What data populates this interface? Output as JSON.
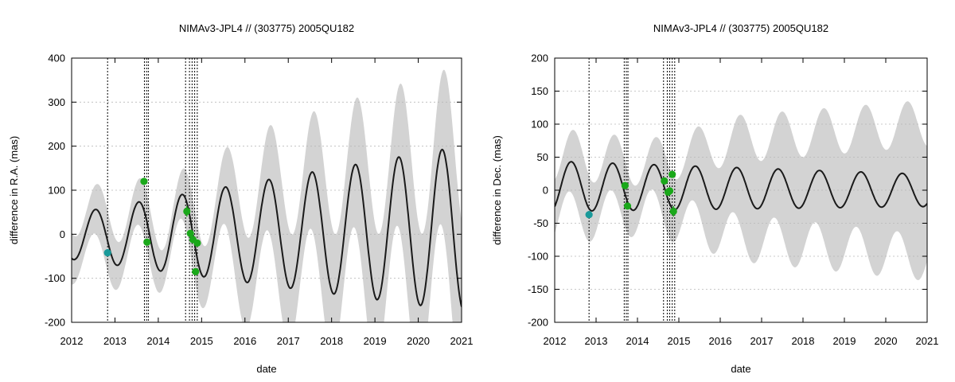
{
  "chart_data": [
    {
      "type": "line",
      "title": "NIMAv3-JPL4 // (303775) 2005QU182",
      "xlabel": "date",
      "ylabel": "difference in R.A. (mas)",
      "xlim": [
        2012,
        2021
      ],
      "ylim": [
        -200,
        400
      ],
      "xticks": [
        2012,
        2013,
        2014,
        2015,
        2016,
        2017,
        2018,
        2019,
        2020,
        2021
      ],
      "yticks": [
        -200,
        -100,
        0,
        100,
        200,
        300,
        400
      ],
      "grid": true,
      "model": {
        "mean_offset": -5,
        "mean_drift_per_year": 2,
        "amplitude_start": 52,
        "amplitude_growth_per_year": 15,
        "peak_phase": 2012.55,
        "period_years": 1.0,
        "band_half_width_start": 55,
        "band_half_width_growth_per_year": 14,
        "band_narrow_at": 2014.2,
        "band_narrow_min": 0.55
      },
      "observation_lines": [
        2012.83,
        2013.68,
        2013.73,
        2013.77,
        2014.63,
        2014.72,
        2014.78,
        2014.84,
        2014.9
      ],
      "series": [
        {
          "color": "#1a9a9a",
          "points": [
            {
              "x": 2012.83,
              "y": -42,
              "err": 8
            }
          ]
        },
        {
          "color": "#1aa81a",
          "points": [
            {
              "x": 2013.67,
              "y": 120,
              "err": 5
            },
            {
              "x": 2013.74,
              "y": -18,
              "err": 4
            },
            {
              "x": 2014.66,
              "y": 52,
              "err": 12
            },
            {
              "x": 2014.74,
              "y": 2,
              "err": 5
            },
            {
              "x": 2014.8,
              "y": -12,
              "err": 4
            },
            {
              "x": 2014.86,
              "y": -85,
              "err": 4
            },
            {
              "x": 2014.9,
              "y": -20,
              "err": 4
            }
          ]
        }
      ]
    },
    {
      "type": "line",
      "title": "NIMAv3-JPL4 // (303775) 2005QU182",
      "xlabel": "date",
      "ylabel": "difference in Dec. (mas)",
      "xlim": [
        2012,
        2021
      ],
      "ylim": [
        -200,
        200
      ],
      "xticks": [
        2012,
        2013,
        2014,
        2015,
        2016,
        2017,
        2018,
        2019,
        2020,
        2021
      ],
      "yticks": [
        -200,
        -150,
        -100,
        -50,
        0,
        50,
        100,
        150,
        200
      ],
      "grid": true,
      "model": {
        "mean_offset": 6,
        "mean_drift_per_year": -0.7,
        "amplitude_start": 38,
        "amplitude_growth_per_year": -1.5,
        "peak_phase": 2012.4,
        "period_years": 1.0,
        "band_half_width_start": 48,
        "band_half_width_growth_per_year": 6,
        "band_narrow_at": 2014.2,
        "band_narrow_min": 0.6
      },
      "observation_lines": [
        2012.83,
        2013.68,
        2013.73,
        2013.77,
        2014.63,
        2014.72,
        2014.78,
        2014.84,
        2014.9
      ],
      "series": [
        {
          "color": "#1a9a9a",
          "points": [
            {
              "x": 2012.83,
              "y": -37,
              "err": 4
            }
          ]
        },
        {
          "color": "#1aa81a",
          "points": [
            {
              "x": 2013.7,
              "y": 7,
              "err": 3
            },
            {
              "x": 2013.76,
              "y": -24,
              "err": 3
            },
            {
              "x": 2014.65,
              "y": 14,
              "err": 4
            },
            {
              "x": 2014.74,
              "y": -3,
              "err": 5
            },
            {
              "x": 2014.78,
              "y": -1,
              "err": 4
            },
            {
              "x": 2014.84,
              "y": 24,
              "err": 3
            },
            {
              "x": 2014.87,
              "y": -32,
              "err": 8
            }
          ]
        }
      ]
    }
  ],
  "style": {
    "band_color": "#d3d3d3",
    "curve_color": "#1a1a1a",
    "grid_color": "#b8b8b8"
  }
}
